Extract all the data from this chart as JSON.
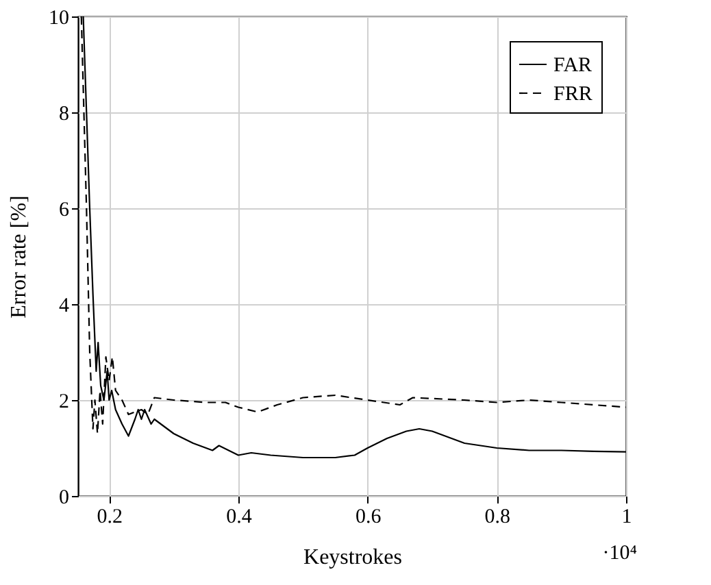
{
  "chart_data": {
    "type": "line",
    "xlabel": "Keystrokes",
    "ylabel": "Error rate [%]",
    "annotations": [
      "·10⁴"
    ],
    "xlim": [
      0.152,
      1
    ],
    "ylim": [
      0,
      10
    ],
    "xticks": [
      0.2,
      0.4,
      0.6,
      0.8,
      1
    ],
    "yticks": [
      0,
      2,
      4,
      6,
      8,
      10
    ],
    "grid": true,
    "legend": "top right",
    "series": [
      {
        "name": "FAR",
        "color": "#000000",
        "line_style": "solid",
        "x": [
          0.16,
          0.165,
          0.17,
          0.175,
          0.18,
          0.183,
          0.187,
          0.192,
          0.197,
          0.2,
          0.204,
          0.21,
          0.22,
          0.23,
          0.24,
          0.245,
          0.25,
          0.255,
          0.265,
          0.27,
          0.3,
          0.33,
          0.36,
          0.37,
          0.4,
          0.42,
          0.45,
          0.5,
          0.55,
          0.58,
          0.6,
          0.63,
          0.66,
          0.68,
          0.7,
          0.75,
          0.8,
          0.85,
          0.9,
          0.95,
          1.0
        ],
        "values": [
          10,
          8,
          6,
          4.2,
          2.6,
          3.2,
          2.3,
          2.0,
          2.6,
          2.0,
          2.2,
          1.8,
          1.5,
          1.25,
          1.6,
          1.8,
          1.6,
          1.8,
          1.5,
          1.6,
          1.3,
          1.1,
          0.95,
          1.05,
          0.85,
          0.9,
          0.85,
          0.8,
          0.8,
          0.85,
          1.0,
          1.2,
          1.35,
          1.4,
          1.35,
          1.1,
          1.0,
          0.95,
          0.95,
          0.93,
          0.92
        ]
      },
      {
        "name": "FRR",
        "color": "#000000",
        "line_style": "dashed",
        "x": [
          0.157,
          0.165,
          0.17,
          0.175,
          0.178,
          0.182,
          0.186,
          0.19,
          0.195,
          0.2,
          0.205,
          0.21,
          0.22,
          0.23,
          0.25,
          0.26,
          0.27,
          0.3,
          0.35,
          0.38,
          0.4,
          0.43,
          0.46,
          0.5,
          0.55,
          0.6,
          0.65,
          0.67,
          0.75,
          0.8,
          0.85,
          0.9,
          1.0
        ],
        "values": [
          10,
          6,
          3,
          1.4,
          2.0,
          1.3,
          2.2,
          1.5,
          2.9,
          2.4,
          2.9,
          2.2,
          2.0,
          1.7,
          1.8,
          1.7,
          2.05,
          2.0,
          1.95,
          1.95,
          1.85,
          1.75,
          1.9,
          2.05,
          2.1,
          2.0,
          1.9,
          2.05,
          2.0,
          1.95,
          2.0,
          1.95,
          1.85
        ]
      }
    ]
  }
}
